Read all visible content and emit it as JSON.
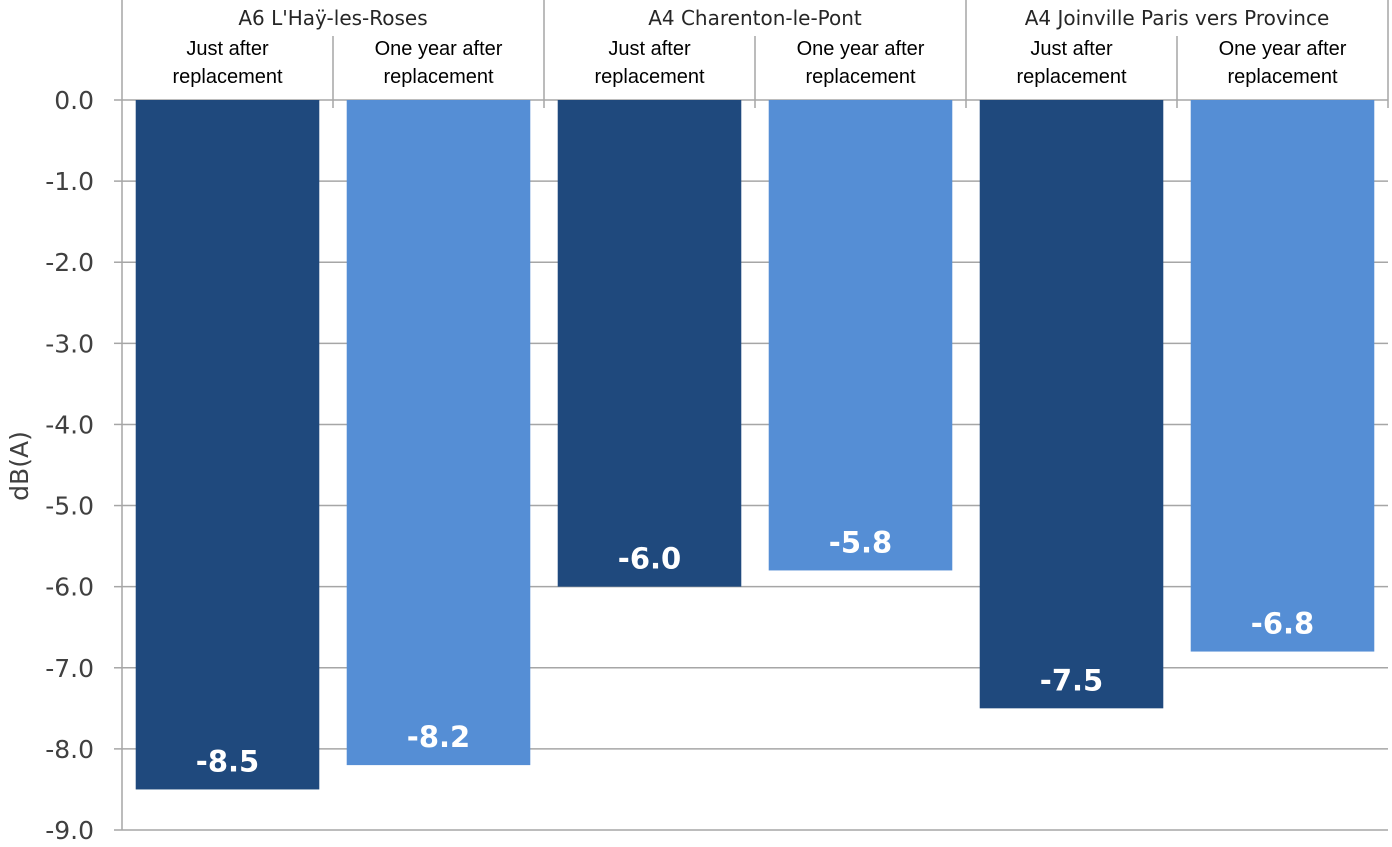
{
  "chart_data": {
    "type": "bar",
    "ylabel": "dB(A)",
    "ylim": [
      -9.0,
      0.0
    ],
    "yticks": [
      "0.0",
      "-1.0",
      "-2.0",
      "-3.0",
      "-4.0",
      "-5.0",
      "-6.0",
      "-7.0",
      "-8.0",
      "-9.0"
    ],
    "grid": true,
    "groups": [
      {
        "name": "A6 L'Haÿ-les-Roses",
        "bars": [
          {
            "category": [
              "Just after",
              "replacement"
            ],
            "value": -8.5,
            "label": "-8.5",
            "color": "#1f497d"
          },
          {
            "category": [
              "One year after",
              "replacement"
            ],
            "value": -8.2,
            "label": "-8.2",
            "color": "#558ed5"
          }
        ]
      },
      {
        "name": "A4 Charenton-le-Pont",
        "bars": [
          {
            "category": [
              "Just after",
              "replacement"
            ],
            "value": -6.0,
            "label": "-6.0",
            "color": "#1f497d"
          },
          {
            "category": [
              "One year after",
              "replacement"
            ],
            "value": -5.8,
            "label": "-5.8",
            "color": "#558ed5"
          }
        ]
      },
      {
        "name": "A4 Joinville Paris vers Province",
        "bars": [
          {
            "category": [
              "Just after",
              "replacement"
            ],
            "value": -7.5,
            "label": "-7.5",
            "color": "#1f497d"
          },
          {
            "category": [
              "One year after",
              "replacement"
            ],
            "value": -6.8,
            "label": "-6.8",
            "color": "#558ed5"
          }
        ]
      }
    ]
  }
}
